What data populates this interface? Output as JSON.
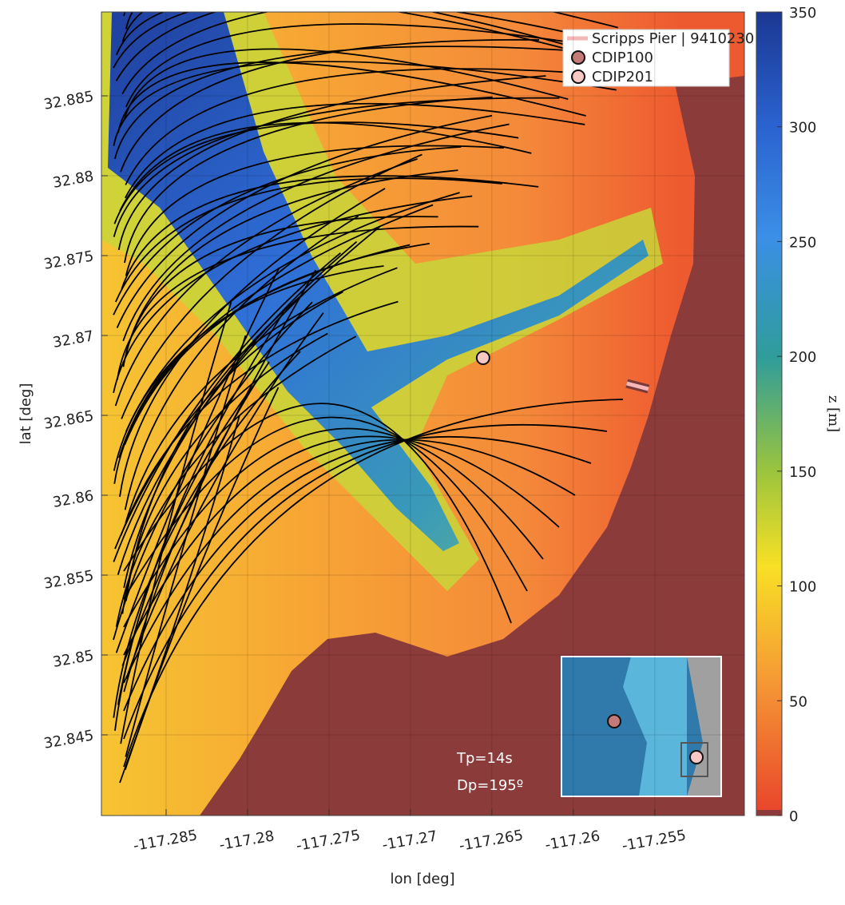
{
  "chart_data": {
    "type": "map",
    "xlabel": "lon [deg]",
    "ylabel": "lat [deg]",
    "xlim": [
      -117.28897,
      -117.2495
    ],
    "ylim": [
      32.83995,
      32.89025
    ],
    "xticks": [
      -117.285,
      -117.28,
      -117.275,
      -117.27,
      -117.265,
      -117.26,
      -117.255
    ],
    "yticks": [
      32.845,
      32.85,
      32.855,
      32.86,
      32.865,
      32.87,
      32.875,
      32.88,
      32.885
    ],
    "colorbar": {
      "label": "z [m]",
      "lim": [
        0,
        350
      ],
      "ticks": [
        0,
        50,
        100,
        150,
        200,
        250,
        300,
        350
      ]
    },
    "series": [
      {
        "name": "Scripps Pier | 9410230",
        "color": "#f4b8b8",
        "x": [
          -117.25672,
          -117.25539
        ],
        "y": [
          32.867,
          32.86665
        ]
      },
      {
        "name": "CDIP100",
        "color": "#c47a78"
      },
      {
        "name": "CDIP201",
        "color": "#f7c8c4",
        "x": [
          -117.26554
        ],
        "y": [
          32.8686
        ]
      }
    ],
    "annotations": [
      "Tp=14s",
      "Dp=195º"
    ]
  }
}
